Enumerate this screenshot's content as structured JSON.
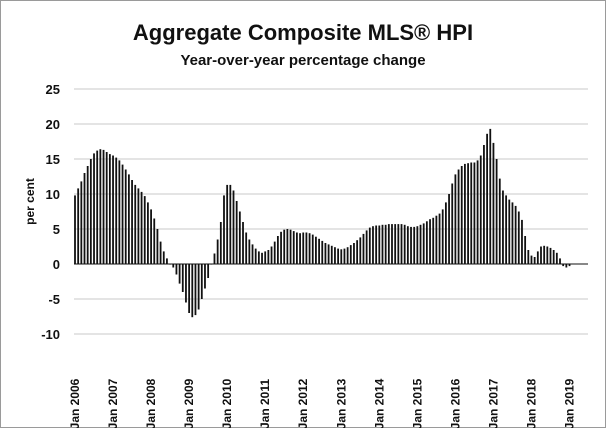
{
  "chart_data": {
    "type": "bar",
    "title": "Aggregate Composite MLS® HPI",
    "subtitle": "Year-over-year percentage change",
    "ylabel": "per cent",
    "xlabel": "",
    "ylim": [
      -10,
      25
    ],
    "yticks": [
      25,
      20,
      15,
      10,
      5,
      0,
      -5,
      -10
    ],
    "grid": "horizontal",
    "bar_color": "#111111",
    "x_tick_labels": [
      "Jan 2006",
      "Jan 2007",
      "Jan 2008",
      "Jan 2009",
      "Jan 2010",
      "Jan 2011",
      "Jan 2012",
      "Jan 2013",
      "Jan 2014",
      "Jan 2015",
      "Jan 2016",
      "Jan 2017",
      "Jan 2018",
      "Jan 2019"
    ],
    "start": "2006-01",
    "frequency": "monthly",
    "values": [
      9.8,
      10.8,
      11.8,
      13.0,
      14.0,
      15.0,
      15.8,
      16.2,
      16.4,
      16.3,
      16.0,
      15.7,
      15.5,
      15.2,
      14.8,
      14.2,
      13.5,
      12.8,
      12.0,
      11.3,
      10.8,
      10.3,
      9.7,
      8.8,
      7.8,
      6.5,
      5.0,
      3.2,
      1.8,
      0.8,
      0.0,
      -0.5,
      -1.5,
      -2.8,
      -4.0,
      -5.5,
      -7.0,
      -7.6,
      -7.3,
      -6.5,
      -5.0,
      -3.5,
      -2.0,
      0.0,
      1.5,
      3.5,
      6.0,
      9.8,
      11.3,
      11.3,
      10.5,
      9.0,
      7.5,
      6.0,
      4.5,
      3.5,
      2.8,
      2.2,
      1.8,
      1.6,
      1.8,
      2.0,
      2.5,
      3.2,
      4.0,
      4.6,
      4.9,
      5.0,
      4.9,
      4.7,
      4.5,
      4.4,
      4.5,
      4.5,
      4.4,
      4.2,
      3.9,
      3.6,
      3.3,
      3.0,
      2.8,
      2.6,
      2.4,
      2.2,
      2.1,
      2.2,
      2.4,
      2.7,
      3.0,
      3.4,
      3.8,
      4.3,
      4.8,
      5.2,
      5.4,
      5.5,
      5.5,
      5.6,
      5.6,
      5.7,
      5.7,
      5.7,
      5.7,
      5.7,
      5.6,
      5.4,
      5.3,
      5.3,
      5.4,
      5.6,
      5.8,
      6.1,
      6.4,
      6.6,
      6.9,
      7.2,
      7.8,
      8.8,
      10.0,
      11.5,
      12.8,
      13.5,
      14.0,
      14.3,
      14.4,
      14.5,
      14.5,
      14.8,
      15.5,
      17.0,
      18.6,
      19.3,
      17.3,
      15.0,
      12.2,
      10.5,
      9.8,
      9.2,
      8.8,
      8.3,
      7.5,
      6.3,
      4.0,
      2.0,
      1.2,
      1.0,
      1.8,
      2.5,
      2.6,
      2.5,
      2.3,
      2.0,
      1.6,
      0.8,
      -0.3,
      -0.5,
      -0.3
    ]
  }
}
